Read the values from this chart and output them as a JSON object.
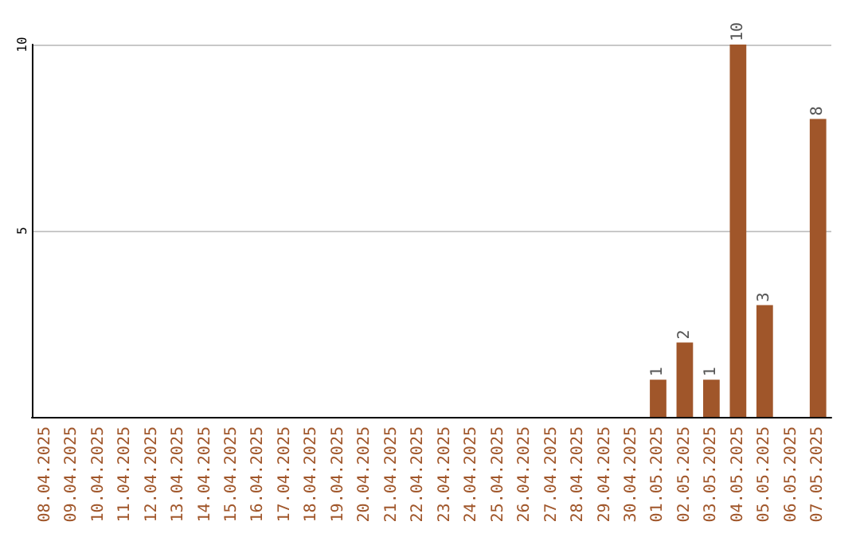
{
  "chart_data": {
    "type": "bar",
    "categories": [
      "08.04.2025",
      "09.04.2025",
      "10.04.2025",
      "11.04.2025",
      "12.04.2025",
      "13.04.2025",
      "14.04.2025",
      "15.04.2025",
      "16.04.2025",
      "17.04.2025",
      "18.04.2025",
      "19.04.2025",
      "20.04.2025",
      "21.04.2025",
      "22.04.2025",
      "23.04.2025",
      "24.04.2025",
      "25.04.2025",
      "26.04.2025",
      "27.04.2025",
      "28.04.2025",
      "29.04.2025",
      "30.04.2025",
      "01.05.2025",
      "02.05.2025",
      "03.05.2025",
      "04.05.2025",
      "05.05.2025",
      "06.05.2025",
      "07.05.2025"
    ],
    "values": [
      0,
      0,
      0,
      0,
      0,
      0,
      0,
      0,
      0,
      0,
      0,
      0,
      0,
      0,
      0,
      0,
      0,
      0,
      0,
      0,
      0,
      0,
      0,
      1,
      2,
      1,
      10,
      3,
      0,
      8
    ],
    "value_labels": [
      null,
      null,
      null,
      null,
      null,
      null,
      null,
      null,
      null,
      null,
      null,
      null,
      null,
      null,
      null,
      null,
      null,
      null,
      null,
      null,
      null,
      null,
      null,
      "1",
      "2",
      "1",
      "10",
      "3",
      null,
      "8"
    ],
    "color": "#a0562a",
    "ylim": [
      0,
      10
    ],
    "yticks": [
      5,
      10
    ],
    "grid": "y"
  }
}
